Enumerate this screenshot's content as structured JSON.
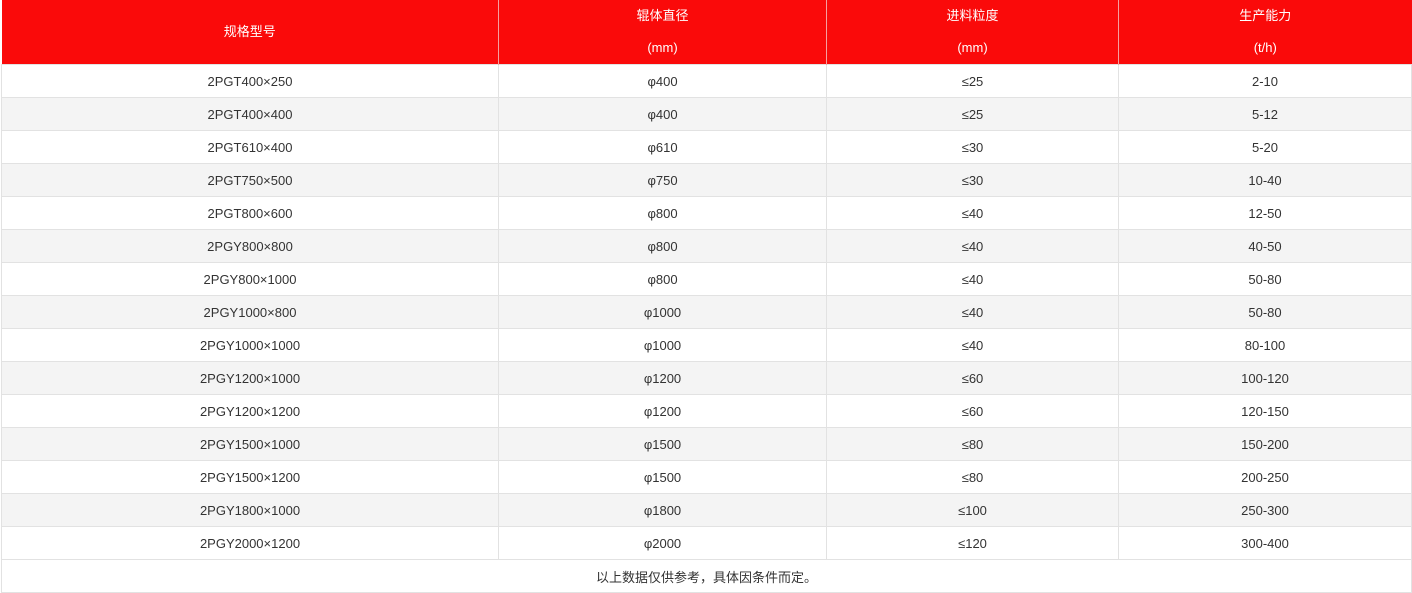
{
  "table": {
    "headers": [
      {
        "line1": "规格型号",
        "line2": ""
      },
      {
        "line1": "辊体直径",
        "line2": "(mm)"
      },
      {
        "line1": "进料粒度",
        "line2": "(mm)"
      },
      {
        "line1": "生产能力",
        "line2": "(t/h)"
      }
    ],
    "rows": [
      [
        "2PGT400×250",
        "φ400",
        "≤25",
        "2-10"
      ],
      [
        "2PGT400×400",
        "φ400",
        "≤25",
        "5-12"
      ],
      [
        "2PGT610×400",
        "φ610",
        "≤30",
        "5-20"
      ],
      [
        "2PGT750×500",
        "φ750",
        "≤30",
        "10-40"
      ],
      [
        "2PGT800×600",
        "φ800",
        "≤40",
        "12-50"
      ],
      [
        "2PGY800×800",
        "φ800",
        "≤40",
        "40-50"
      ],
      [
        "2PGY800×1000",
        "φ800",
        "≤40",
        "50-80"
      ],
      [
        "2PGY1000×800",
        "φ1000",
        "≤40",
        "50-80"
      ],
      [
        "2PGY1000×1000",
        "φ1000",
        "≤40",
        "80-100"
      ],
      [
        "2PGY1200×1000",
        "φ1200",
        "≤60",
        "100-120"
      ],
      [
        "2PGY1200×1200",
        "φ1200",
        "≤60",
        "120-150"
      ],
      [
        "2PGY1500×1000",
        "φ1500",
        "≤80",
        "150-200"
      ],
      [
        "2PGY1500×1200",
        "φ1500",
        "≤80",
        "200-250"
      ],
      [
        "2PGY1800×1000",
        "φ1800",
        "≤100",
        "250-300"
      ],
      [
        "2PGY2000×1200",
        "φ2000",
        "≤120",
        "300-400"
      ]
    ],
    "note": "以上数据仅供参考，具体因条件而定。",
    "colors": {
      "header_bg": "#fa0a0a",
      "header_text": "#ffffff",
      "stripe": "#f4f4f4"
    }
  }
}
